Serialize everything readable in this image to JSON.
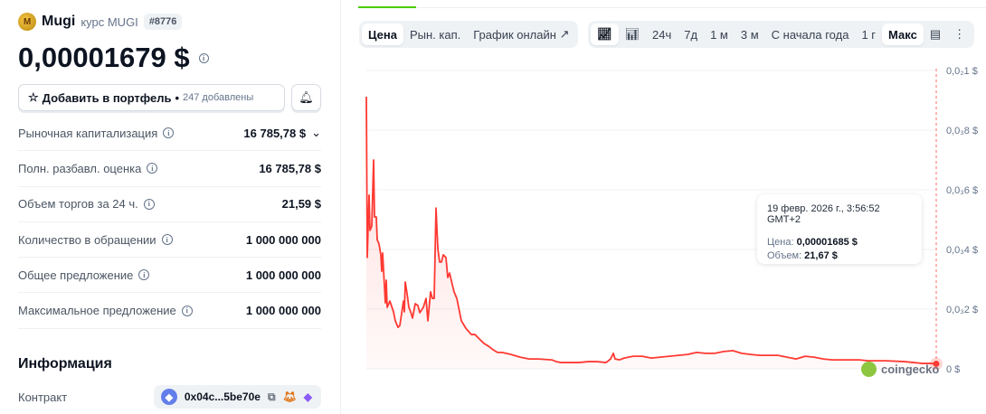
{
  "coin": {
    "name": "Mugi",
    "subtitle": "курс MUGI",
    "rank": "#8776",
    "price": "0,00001679 $",
    "logo_text": "M"
  },
  "portfolio": {
    "label": "Добавить в портфель",
    "dot": "•",
    "count": "247 добавлены"
  },
  "stats": [
    {
      "label": "Рыночная капитализация",
      "value": "16 785,78 $",
      "expandable": true
    },
    {
      "label": "Полн. разбавл. оценка",
      "value": "16 785,78 $"
    },
    {
      "label": "Объем торгов за 24 ч.",
      "value": "21,59 $"
    },
    {
      "label": "Количество в обращении",
      "value": "1 000 000 000"
    },
    {
      "label": "Общее предложение",
      "value": "1 000 000 000"
    },
    {
      "label": "Максимальное предложение",
      "value": "1 000 000 000"
    }
  ],
  "info": {
    "heading": "Информация",
    "contract_label": "Контракт",
    "contract": "0x04c...5be70e"
  },
  "tabs": {
    "data_type": [
      "Цена",
      "Рын. кап.",
      "График онлайн"
    ],
    "selected_type": "Цена",
    "ranges": [
      "24ч",
      "7д",
      "1 м",
      "3 м",
      "С начала года",
      "1 г",
      "Макс"
    ],
    "selected_range": "Макс"
  },
  "tooltip": {
    "date": "19 февр. 2026 г., 3:56:52 GMT+2",
    "price_label": "Цена:",
    "price": "0,00001685 $",
    "volume_label": "Объем:",
    "volume": "21,67 $"
  },
  "watermark": "coingecko",
  "colors": {
    "line": "#ff3a33",
    "accent": "#4bcc00"
  },
  "chart_data": {
    "type": "area",
    "ylim": [
      0,
      0.001
    ],
    "yticks": [
      {
        "value": 0.001,
        "label": "0,0₂1 $"
      },
      {
        "value": 0.0008,
        "label": "0,0₃8 $"
      },
      {
        "value": 0.0006,
        "label": "0,0₃6 $"
      },
      {
        "value": 0.0004,
        "label": "0,0₃4 $"
      },
      {
        "value": 0.0002,
        "label": "0,0₃2 $"
      },
      {
        "value": 0,
        "label": "0 $"
      }
    ],
    "grid": true,
    "values": [
      0.000912,
      0.000373,
      0.000582,
      0.000464,
      0.000479,
      0.0007,
      0.000509,
      0.000509,
      0.000433,
      0.000418,
      0.000382,
      0.000327,
      0.000388,
      0.000221,
      0.000297,
      0.000206,
      0.000227,
      0.000191,
      0.000161,
      0.000139,
      0.000145,
      0.000227,
      0.000191,
      0.000291,
      0.000252,
      0.000206,
      0.000191,
      0.00017,
      0.000218,
      0.000212,
      0.000188,
      0.000206,
      0.000236,
      0.000161,
      0.000258,
      0.000236,
      0.000236,
      0.000539,
      0.000403,
      0.000358,
      0.000358,
      0.000382,
      0.000373,
      0.000306,
      0.000321,
      0.000282,
      0.000258,
      0.000236,
      0.000161,
      0.000136,
      0.000115,
      0.000115,
      0.0001,
      8.5e-05,
      7.6e-05,
      6.4e-05,
      5.5e-05,
      5.5e-05,
      4.8e-05,
      3.9e-05,
      3.3e-05,
      3.3e-05,
      3e-05,
      2.4e-05,
      2.1e-05,
      2.1e-05,
      2.1e-05,
      2.4e-05,
      2.4e-05,
      2.1e-05,
      3.3e-05,
      5.2e-05,
      3.3e-05,
      3e-05,
      3.6e-05,
      4.2e-05,
      4.2e-05,
      3.6e-05,
      3.9e-05,
      4.2e-05,
      4.5e-05,
      4.8e-05,
      5.5e-05,
      5.2e-05,
      5.2e-05,
      5.8e-05,
      6.1e-05,
      5.2e-05,
      4.8e-05,
      4.5e-05,
      4.5e-05,
      4.5e-05,
      3.9e-05,
      3.3e-05,
      4.2e-05,
      3.9e-05,
      3.3e-05,
      3e-05,
      3e-05,
      3e-05,
      3e-05,
      2.7e-05,
      2.7e-05,
      2.7e-05,
      2.4e-05,
      2.1e-05,
      1.8e-05,
      1.8e-05,
      1.685e-05
    ]
  }
}
